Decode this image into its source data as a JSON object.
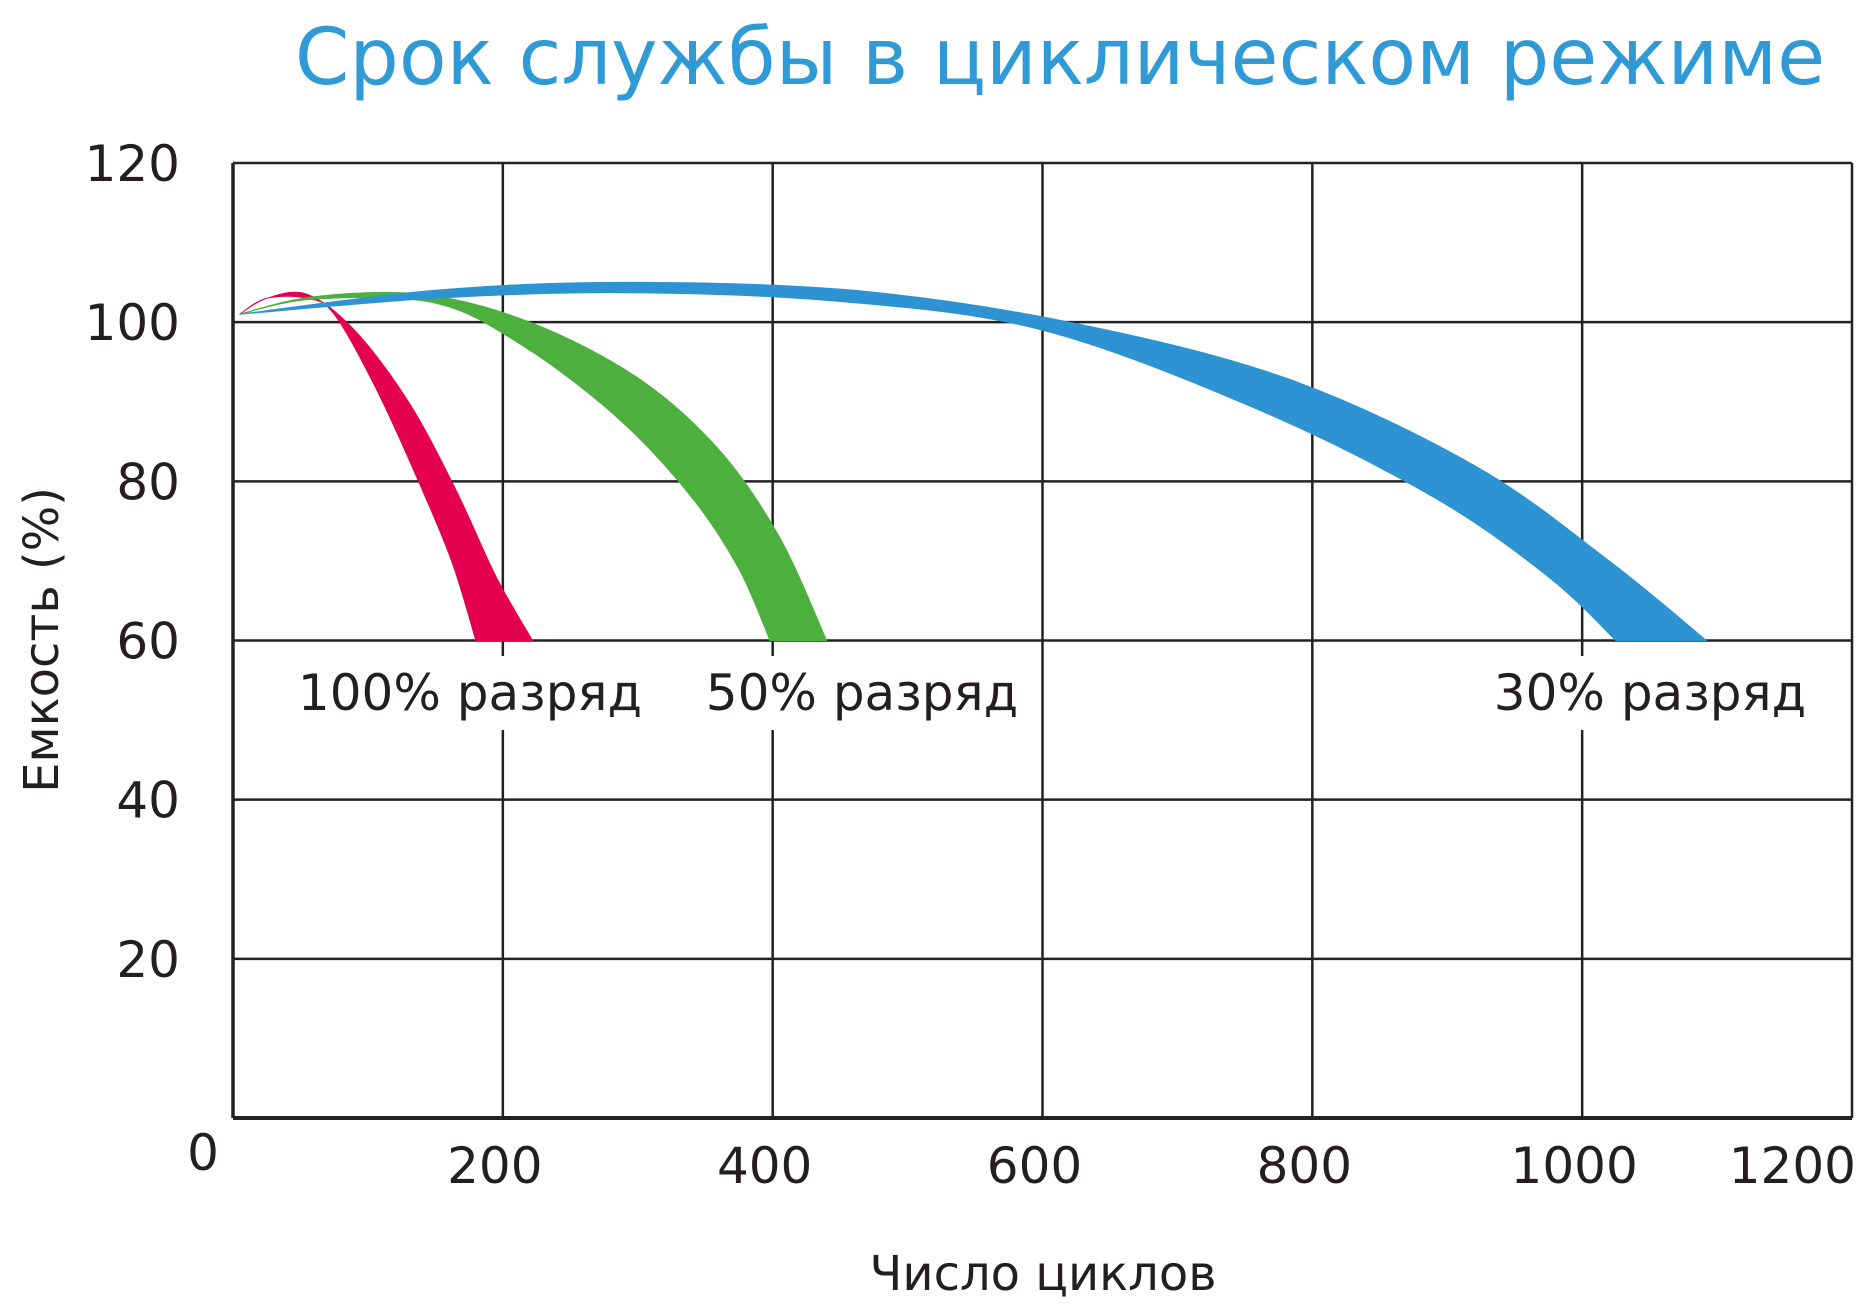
{
  "chart_data": {
    "type": "area",
    "title": "Срок службы в циклическом режиме",
    "xlabel": "Число циклов",
    "ylabel": "Емкость (%)",
    "xlim": [
      0,
      1200
    ],
    "ylim": [
      0,
      120
    ],
    "x_ticks": [
      "200",
      "400",
      "600",
      "800",
      "1000",
      "1200"
    ],
    "y_ticks": [
      "20",
      "40",
      "60",
      "80",
      "100",
      "120"
    ],
    "origin_label": "0",
    "grid": true,
    "series": [
      {
        "name": "100% разряд",
        "label": "100% разряд",
        "color": "#e3004f",
        "upper": [
          [
            5,
            101
          ],
          [
            25,
            103
          ],
          [
            55,
            103.5
          ],
          [
            90,
            99
          ],
          [
            130,
            90
          ],
          [
            165,
            79
          ],
          [
            195,
            68
          ],
          [
            222,
            60
          ]
        ],
        "lower": [
          [
            5,
            101
          ],
          [
            25,
            103
          ],
          [
            55,
            103
          ],
          [
            75,
            101
          ],
          [
            105,
            92
          ],
          [
            135,
            81
          ],
          [
            162,
            70
          ],
          [
            180,
            60
          ]
        ]
      },
      {
        "name": "50% разряд",
        "label": "50% разряд",
        "color": "#4caf3e",
        "upper": [
          [
            5,
            101
          ],
          [
            60,
            103.2
          ],
          [
            140,
            103.5
          ],
          [
            220,
            100
          ],
          [
            300,
            93
          ],
          [
            360,
            84
          ],
          [
            405,
            73
          ],
          [
            440,
            60
          ]
        ],
        "lower": [
          [
            5,
            101
          ],
          [
            60,
            102.9
          ],
          [
            150,
            102.4
          ],
          [
            215,
            97
          ],
          [
            285,
            88
          ],
          [
            340,
            78
          ],
          [
            375,
            69
          ],
          [
            398,
            60
          ]
        ]
      },
      {
        "name": "30% разряд",
        "label": "30% разряд",
        "color": "#2d93d2",
        "upper": [
          [
            5,
            101
          ],
          [
            150,
            104
          ],
          [
            290,
            105
          ],
          [
            460,
            104
          ],
          [
            620,
            100
          ],
          [
            780,
            93
          ],
          [
            920,
            82
          ],
          [
            1020,
            70
          ],
          [
            1092,
            60
          ]
        ],
        "lower": [
          [
            5,
            101
          ],
          [
            150,
            103
          ],
          [
            290,
            103.7
          ],
          [
            450,
            102.6
          ],
          [
            600,
            99
          ],
          [
            760,
            89
          ],
          [
            890,
            78
          ],
          [
            975,
            68
          ],
          [
            1025,
            60
          ]
        ]
      }
    ]
  }
}
